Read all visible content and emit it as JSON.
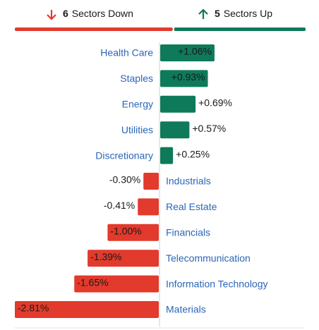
{
  "header": {
    "down": {
      "count": 6,
      "label": "Sectors Down"
    },
    "up": {
      "count": 5,
      "label": "Sectors Up"
    }
  },
  "chart_data": {
    "type": "bar",
    "orientation": "horizontal",
    "categories": [
      "Health Care",
      "Staples",
      "Energy",
      "Utilities",
      "Discretionary",
      "Industrials",
      "Real Estate",
      "Financials",
      "Telecommunication",
      "Information Technology",
      "Materials"
    ],
    "values": [
      1.06,
      0.93,
      0.69,
      0.57,
      0.25,
      -0.3,
      -0.41,
      -1.0,
      -1.39,
      -1.65,
      -2.81
    ],
    "value_labels": [
      "+1.06%",
      "+0.93%",
      "+0.69%",
      "+0.57%",
      "+0.25%",
      "-0.30%",
      "-0.41%",
      "-1.00%",
      "-1.39%",
      "-1.65%",
      "-2.81%"
    ],
    "positive_color": "#0f7a5a",
    "negative_color": "#e23a2c"
  }
}
